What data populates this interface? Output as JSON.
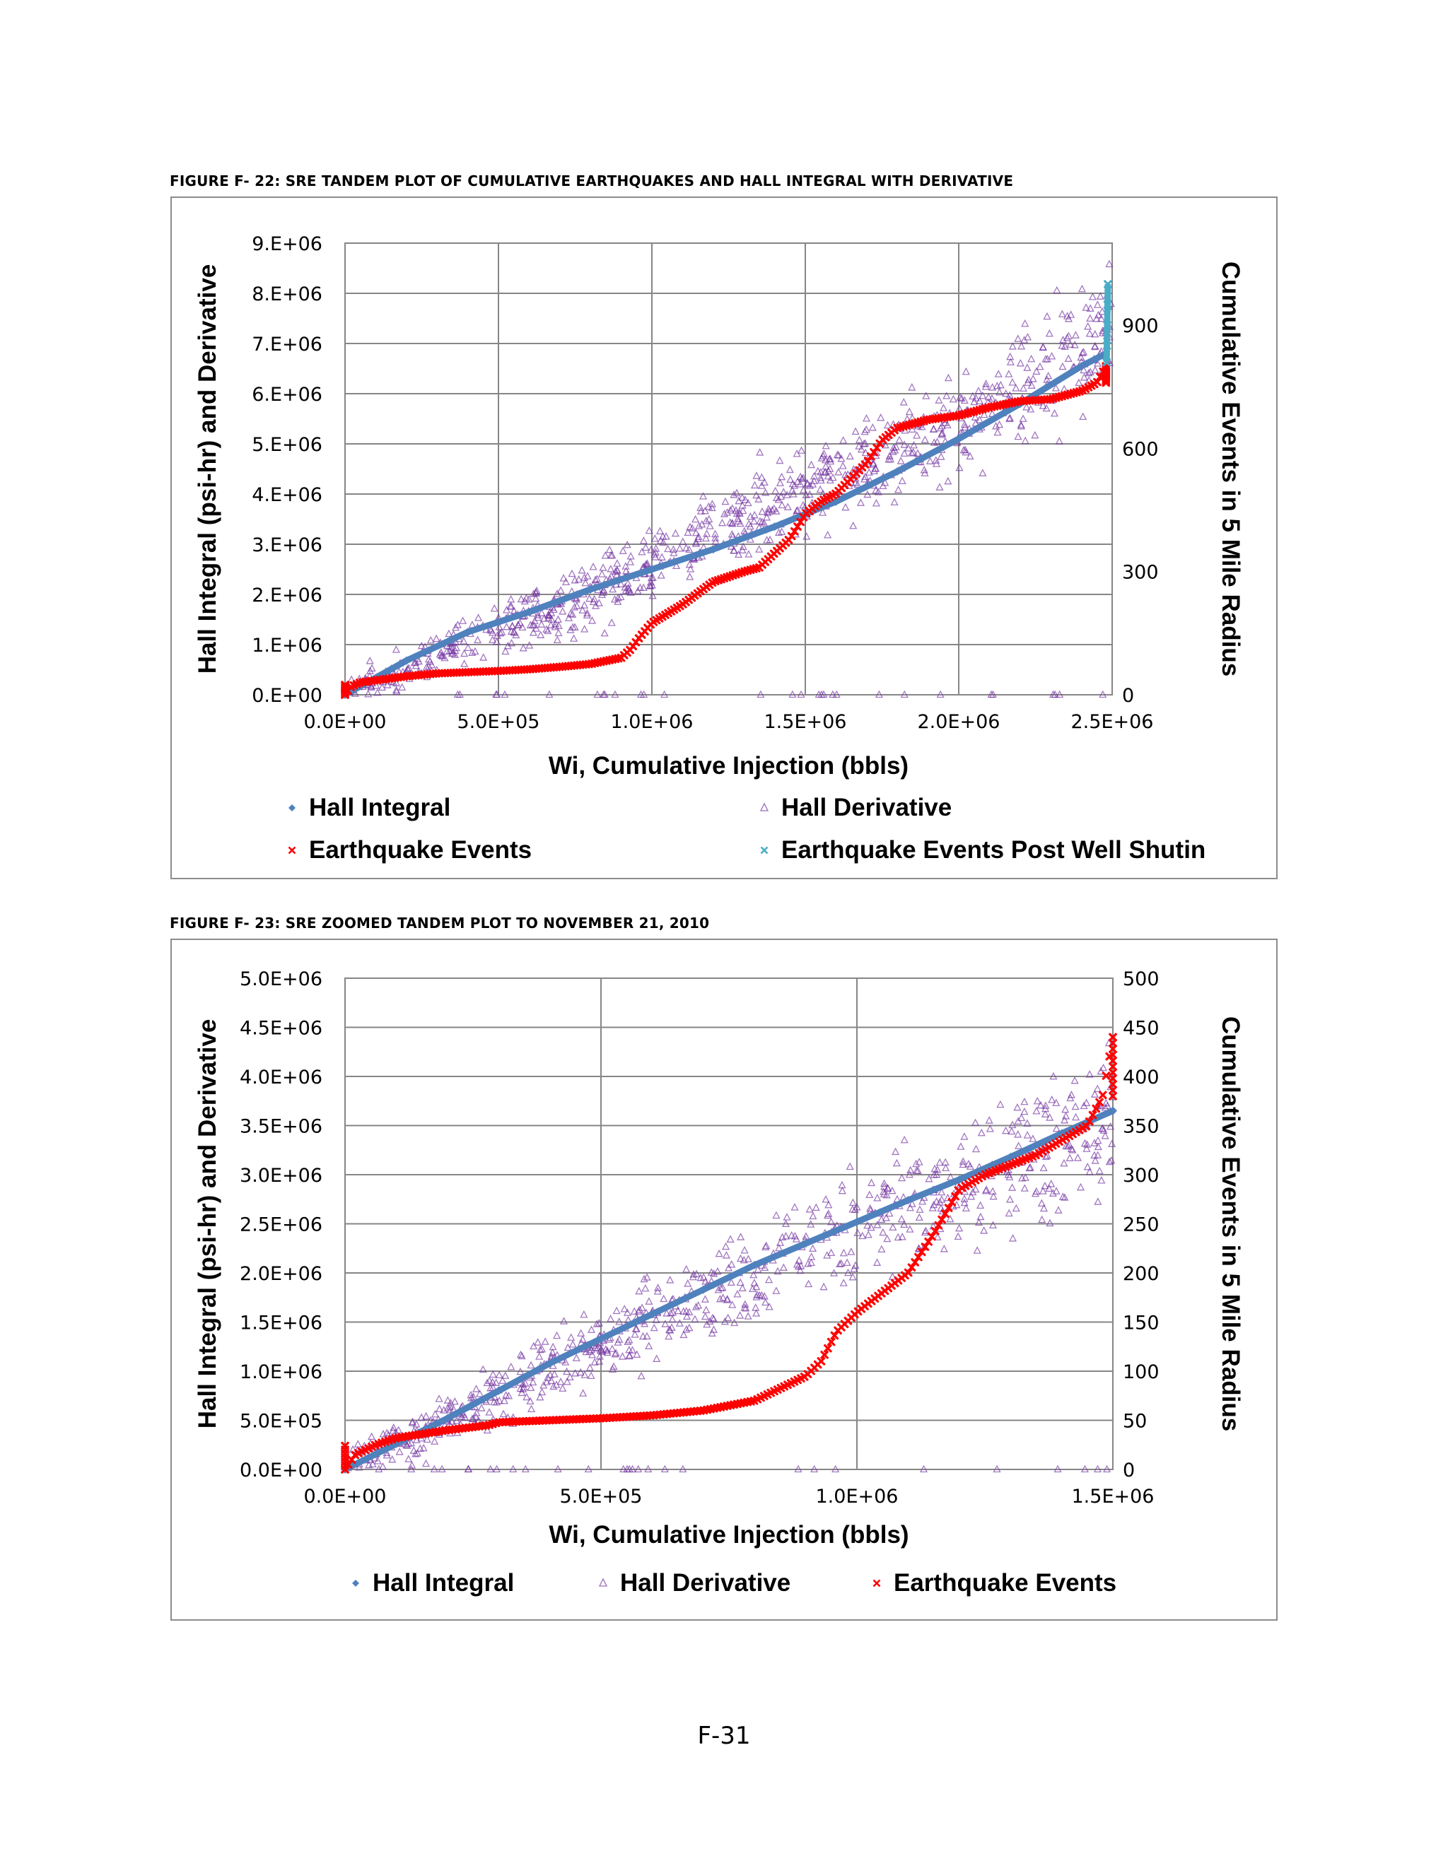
{
  "figures": [
    {
      "caption": "FIGURE F- 22: SRE TANDEM PLOT OF CUMULATIVE EARTHQUAKES AND HALL INTEGRAL WITH DERIVATIVE"
    },
    {
      "caption": "FIGURE F- 23:  SRE ZOOMED TANDEM PLOT TO NOVEMBER 21, 2010"
    }
  ],
  "page_number": "F-31",
  "colors": {
    "hall_integral": "#4f81bd",
    "hall_derivative": "#7030a0",
    "earthquake_events": "#ff0000",
    "post_shutin": "#4bacc6",
    "gridline": "#868686"
  },
  "chart_data": [
    {
      "type": "scatter",
      "xlabel": "Wi, Cumulative Injection (bbls)",
      "ylabel": "Hall Integral (psi-hr) and Derivative",
      "y2label": "Cumulative Events in 5 Mile Radius",
      "xlim": [
        0,
        2500000
      ],
      "ylim": [
        0,
        9000000
      ],
      "y2lim": [
        0,
        1100
      ],
      "x_ticks": [
        0,
        500000,
        1000000,
        1500000,
        2000000,
        2500000
      ],
      "x_tick_labels": [
        "0.0E+00",
        "5.0E+05",
        "1.0E+06",
        "1.5E+06",
        "2.0E+06",
        "2.5E+06"
      ],
      "y_ticks": [
        0,
        1000000,
        2000000,
        3000000,
        4000000,
        5000000,
        6000000,
        7000000,
        8000000,
        9000000
      ],
      "y_tick_labels": [
        "0.E+00",
        "1.E+06",
        "2.E+06",
        "3.E+06",
        "4.E+06",
        "5.E+06",
        "6.E+06",
        "7.E+06",
        "8.E+06",
        "9.E+06"
      ],
      "y2_ticks": [
        0,
        300,
        600,
        900
      ],
      "y2_tick_labels": [
        "0",
        "300",
        "600",
        "900"
      ],
      "x_gridlines": [
        0,
        500000,
        1000000,
        1500000,
        2000000,
        2500000
      ],
      "y_gridlines": [
        0,
        1000000,
        2000000,
        3000000,
        4000000,
        5000000,
        6000000,
        7000000,
        8000000,
        9000000
      ],
      "legend": {
        "placement": "bottom",
        "columns": 2,
        "entries": [
          {
            "label": "Hall Integral",
            "marker": "diamond",
            "series": "hall_integral"
          },
          {
            "label": "Hall Derivative",
            "marker": "triangle",
            "series": "hall_derivative"
          },
          {
            "label": "Earthquake Events",
            "marker": "x",
            "series": "earthquake_events"
          },
          {
            "label": "Earthquake Events Post Well Shutin",
            "marker": "x",
            "series": "post_shutin"
          }
        ]
      },
      "series": [
        {
          "name": "Hall Integral",
          "axis": "left",
          "style": "diamond-line",
          "x": [
            0,
            200000,
            400000,
            600000,
            800000,
            1000000,
            1200000,
            1400000,
            1600000,
            1800000,
            2000000,
            2200000,
            2400000,
            2480000
          ],
          "y": [
            0,
            680000,
            1250000,
            1650000,
            2100000,
            2500000,
            2900000,
            3350000,
            3850000,
            4450000,
            5100000,
            5800000,
            6550000,
            6800000
          ]
        },
        {
          "name": "Hall Derivative",
          "axis": "left",
          "style": "triangle-cloud",
          "trend_x": [
            0,
            400000,
            800000,
            1200000,
            1600000,
            2000000,
            2400000,
            2480000
          ],
          "trend_y": [
            0,
            1100000,
            2000000,
            3200000,
            4300000,
            5400000,
            7000000,
            7400000
          ],
          "spread_y": 1500000
        },
        {
          "name": "Earthquake Events",
          "axis": "right",
          "style": "x-marker",
          "x": [
            0,
            20000,
            50000,
            100000,
            200000,
            300000,
            400000,
            500000,
            600000,
            700000,
            800000,
            900000,
            930000,
            960000,
            1000000,
            1100000,
            1200000,
            1300000,
            1350000,
            1450000,
            1500000,
            1550000,
            1600000,
            1700000,
            1750000,
            1800000,
            1900000,
            2000000,
            2100000,
            2200000,
            2300000,
            2400000,
            2450000,
            2480000
          ],
          "y": [
            0,
            20,
            30,
            35,
            45,
            52,
            55,
            58,
            62,
            68,
            75,
            90,
            110,
            140,
            175,
            220,
            275,
            300,
            310,
            380,
            440,
            470,
            490,
            565,
            620,
            650,
            670,
            680,
            700,
            715,
            720,
            740,
            760,
            800
          ]
        },
        {
          "name": "Earthquake Events Post Well Shutin",
          "axis": "right",
          "style": "x-marker",
          "x": [
            2482000,
            2483000,
            2484000,
            2485000,
            2486000
          ],
          "y": [
            810,
            850,
            900,
            950,
            1000
          ]
        }
      ]
    },
    {
      "type": "scatter",
      "xlabel": "Wi, Cumulative Injection (bbls)",
      "ylabel": "Hall Integral (psi-hr) and Derivative",
      "y2label": "Cumulative Events in 5 Mile Radius",
      "xlim": [
        0,
        1500000
      ],
      "ylim": [
        0,
        5000000
      ],
      "y2lim": [
        0,
        500
      ],
      "x_ticks": [
        0,
        500000,
        1000000,
        1500000
      ],
      "x_tick_labels": [
        "0.0E+00",
        "5.0E+05",
        "1.0E+06",
        "1.5E+06"
      ],
      "y_ticks": [
        0,
        500000,
        1000000,
        1500000,
        2000000,
        2500000,
        3000000,
        3500000,
        4000000,
        4500000,
        5000000
      ],
      "y_tick_labels": [
        "0.0E+00",
        "5.0E+05",
        "1.0E+06",
        "1.5E+06",
        "2.0E+06",
        "2.5E+06",
        "3.0E+06",
        "3.5E+06",
        "4.0E+06",
        "4.5E+06",
        "5.0E+06"
      ],
      "y2_ticks": [
        0,
        50,
        100,
        150,
        200,
        250,
        300,
        350,
        400,
        450,
        500
      ],
      "y2_tick_labels": [
        "0",
        "50",
        "100",
        "150",
        "200",
        "250",
        "300",
        "350",
        "400",
        "450",
        "500"
      ],
      "x_gridlines": [
        0,
        500000,
        1000000,
        1500000
      ],
      "y_gridlines": [
        0,
        500000,
        1000000,
        1500000,
        2000000,
        2500000,
        3000000,
        3500000,
        4000000,
        4500000,
        5000000
      ],
      "legend": {
        "placement": "bottom",
        "columns": 3,
        "entries": [
          {
            "label": "Hall Integral",
            "marker": "diamond",
            "series": "hall_integral"
          },
          {
            "label": "Hall Derivative",
            "marker": "triangle",
            "series": "hall_derivative"
          },
          {
            "label": "Earthquake Events",
            "marker": "x",
            "series": "earthquake_events"
          }
        ]
      },
      "series": [
        {
          "name": "Hall Integral",
          "axis": "left",
          "style": "diamond-line",
          "x": [
            0,
            100000,
            200000,
            300000,
            400000,
            500000,
            600000,
            700000,
            800000,
            900000,
            1000000,
            1100000,
            1200000,
            1300000,
            1400000,
            1500000
          ],
          "y": [
            0,
            260000,
            520000,
            800000,
            1080000,
            1330000,
            1580000,
            1830000,
            2080000,
            2300000,
            2520000,
            2740000,
            2950000,
            3180000,
            3420000,
            3650000
          ]
        },
        {
          "name": "Hall Derivative",
          "axis": "left",
          "style": "triangle-cloud",
          "trend_x": [
            0,
            200000,
            400000,
            600000,
            800000,
            1000000,
            1200000,
            1400000,
            1500000
          ],
          "trend_y": [
            0,
            500000,
            1000000,
            1500000,
            2000000,
            2500000,
            2900000,
            3300000,
            3600000
          ],
          "spread_y": 900000
        },
        {
          "name": "Earthquake Events",
          "axis": "right",
          "style": "x-marker",
          "x": [
            0,
            20000,
            60000,
            100000,
            200000,
            280000,
            300000,
            400000,
            500000,
            600000,
            700000,
            800000,
            860000,
            900000,
            930000,
            960000,
            1000000,
            1050000,
            1100000,
            1150000,
            1200000,
            1250000,
            1300000,
            1350000,
            1400000,
            1450000,
            1480000,
            1500000
          ],
          "y": [
            0,
            15,
            25,
            32,
            40,
            45,
            48,
            50,
            52,
            55,
            60,
            70,
            85,
            95,
            110,
            140,
            160,
            180,
            200,
            240,
            285,
            300,
            310,
            320,
            335,
            350,
            380,
            440
          ]
        }
      ]
    }
  ]
}
